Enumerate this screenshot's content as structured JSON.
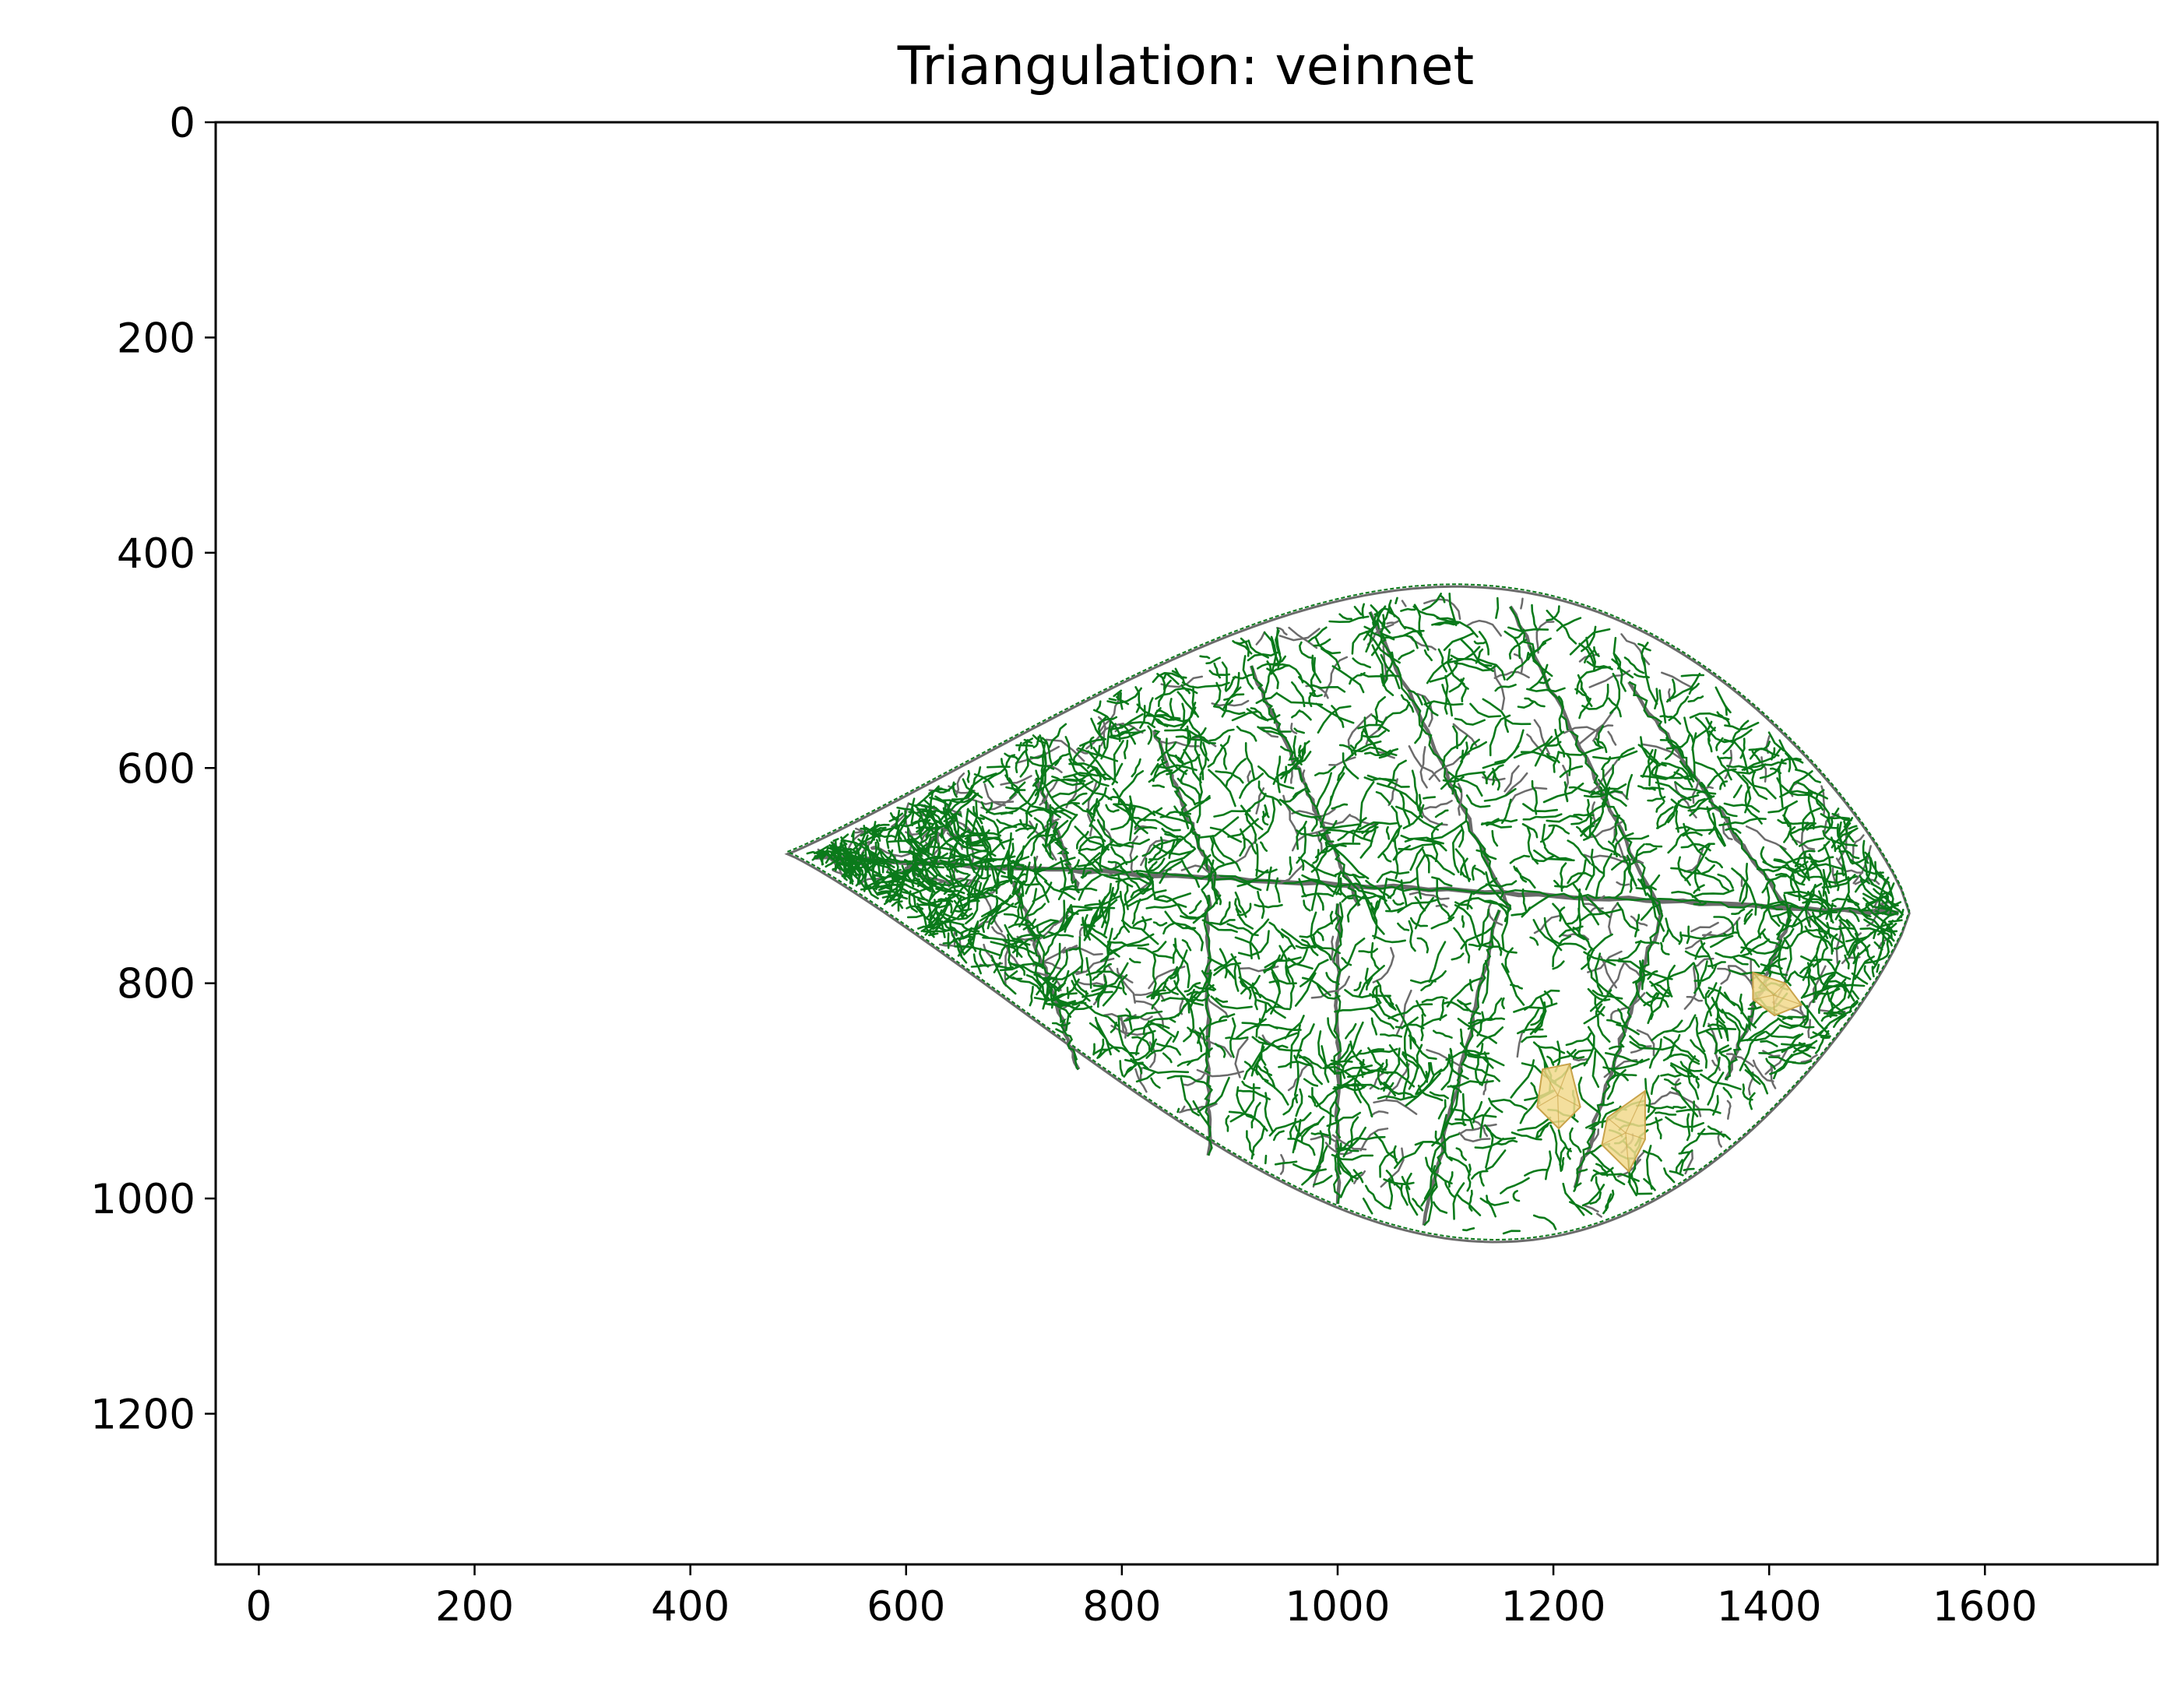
{
  "chart_data": {
    "type": "triangulation",
    "title": "Triangulation: veinnet",
    "xlabel": "",
    "ylabel": "",
    "xlim": [
      -40,
      1760
    ],
    "ylim": [
      1340,
      0
    ],
    "y_inverted": true,
    "grid": false,
    "x_ticks": [
      "0",
      "200",
      "400",
      "600",
      "800",
      "1000",
      "1200",
      "1400",
      "1600"
    ],
    "y_ticks": [
      "0",
      "200",
      "400",
      "600",
      "800",
      "1000",
      "1200"
    ],
    "leaf": {
      "base": [
        490,
        680
      ],
      "tip": [
        1530,
        735
      ],
      "top_max": [
        1130,
        432
      ],
      "bottom_max": [
        1110,
        1040
      ]
    },
    "secondary_veins": [
      {
        "from": [
          600,
          695
        ],
        "to": [
          650,
          640
        ]
      },
      {
        "from": [
          760,
          715
        ],
        "to": [
          720,
          610
        ]
      },
      {
        "from": [
          890,
          720
        ],
        "to": [
          830,
          565
        ]
      },
      {
        "from": [
          1020,
          728
        ],
        "to": [
          920,
          505
        ]
      },
      {
        "from": [
          1160,
          732
        ],
        "to": [
          1030,
          455
        ]
      },
      {
        "from": [
          1300,
          734
        ],
        "to": [
          1160,
          450
        ]
      },
      {
        "from": [
          1420,
          736
        ],
        "to": [
          1270,
          520
        ]
      },
      {
        "from": [
          700,
          705
        ],
        "to": [
          760,
          880
        ]
      },
      {
        "from": [
          880,
          718
        ],
        "to": [
          880,
          960
        ]
      },
      {
        "from": [
          1000,
          726
        ],
        "to": [
          1000,
          1005
        ]
      },
      {
        "from": [
          1150,
          732
        ],
        "to": [
          1080,
          1025
        ]
      },
      {
        "from": [
          1300,
          734
        ],
        "to": [
          1220,
          990
        ]
      },
      {
        "from": [
          1420,
          736
        ],
        "to": [
          1360,
          890
        ]
      }
    ],
    "highlight_regions": [
      {
        "points": [
          [
            1190,
            880
          ],
          [
            1215,
            875
          ],
          [
            1225,
            915
          ],
          [
            1205,
            935
          ],
          [
            1185,
            915
          ]
        ]
      },
      {
        "points": [
          [
            1250,
            925
          ],
          [
            1285,
            900
          ],
          [
            1285,
            945
          ],
          [
            1270,
            975
          ],
          [
            1245,
            950
          ]
        ]
      },
      {
        "points": [
          [
            1385,
            790
          ],
          [
            1415,
            800
          ],
          [
            1430,
            820
          ],
          [
            1405,
            830
          ],
          [
            1385,
            815
          ]
        ]
      }
    ],
    "colors": {
      "mesh": "#0a7a1a",
      "outline": "#6b6b6b",
      "highlight": "#f2d98c",
      "highlight_edge": "#c9a34a",
      "axes": "#000000"
    }
  }
}
